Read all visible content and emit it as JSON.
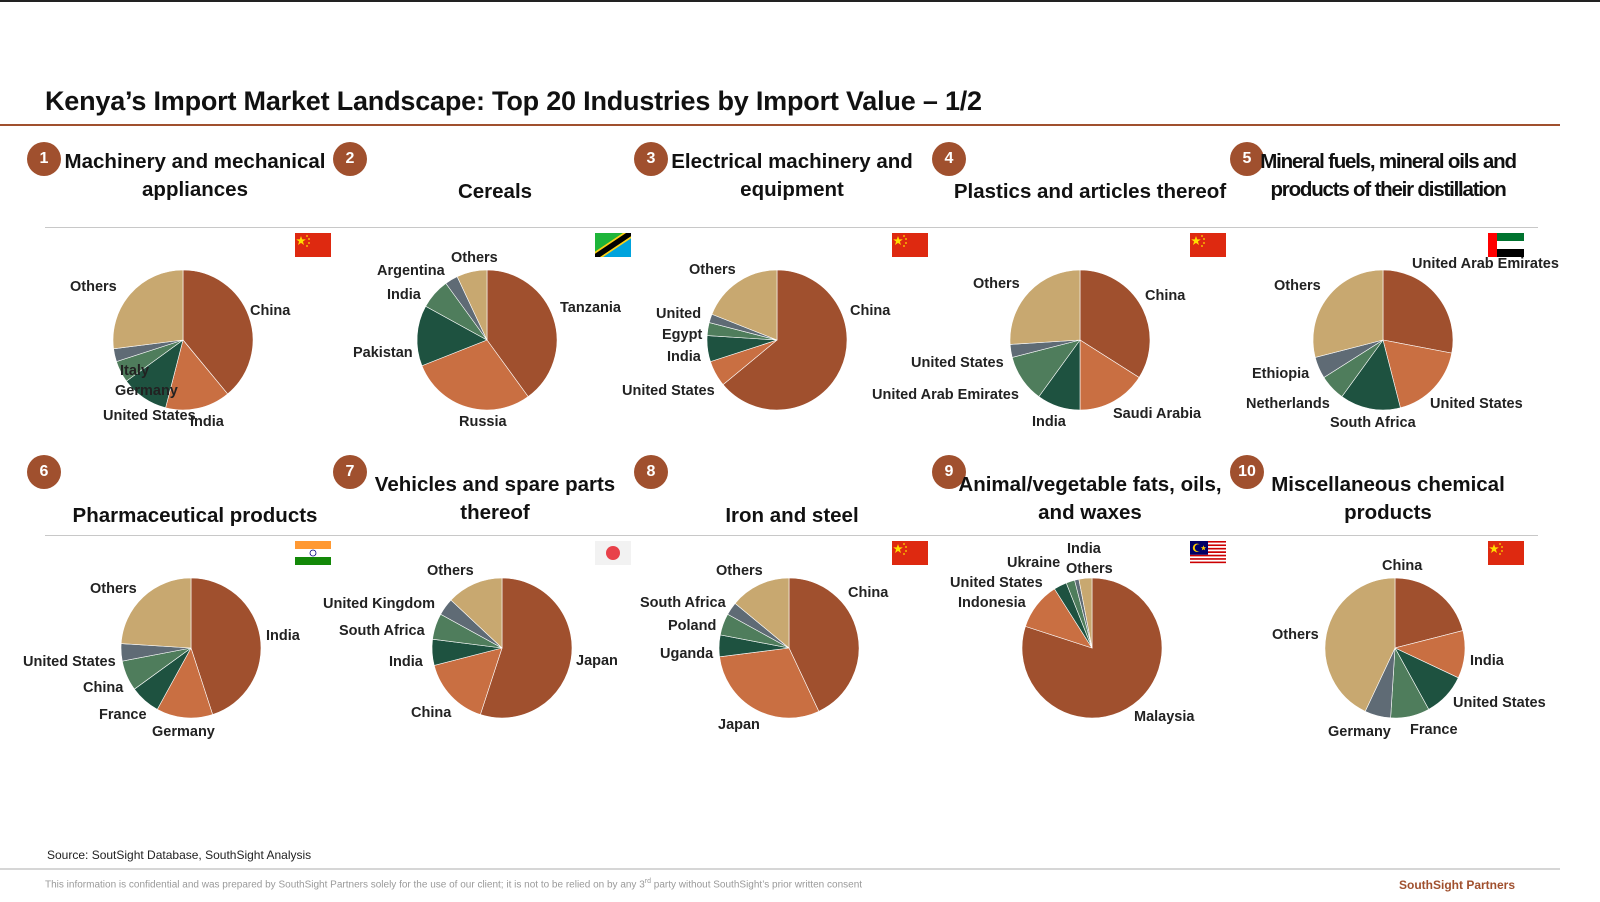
{
  "page": {
    "title": "Kenya’s Import Market Landscape: Top 20 Industries by Import Value – 1/2",
    "source": "Source: SoutSight Database, SouthSight Analysis",
    "disclaimer_before": "This information is confidential and was prepared by SouthSight Partners solely for the use of our client; it is not to be relied on by any 3",
    "disclaimer_sup": "rd",
    "disclaimer_after": " party without SouthSight’s prior written consent",
    "brand": "SouthSight Partners"
  },
  "colors": {
    "accent": "#A0502E",
    "slice_palette": [
      "#A0502E",
      "#C96F42",
      "#1E5240",
      "#4F7D5C",
      "#5F6B75",
      "#C8A870"
    ]
  },
  "chart_data": [
    {
      "type": "pie",
      "rank": "1",
      "title_lines": [
        "Machinery and mechanical",
        "appliances"
      ],
      "top_flag": "china-flag",
      "categories": [
        "China",
        "India",
        "United States",
        "Germany",
        "Italy",
        "Others"
      ],
      "values": [
        39,
        15,
        11,
        5,
        3,
        27
      ]
    },
    {
      "type": "pie",
      "rank": "2",
      "title_lines": [
        "Cereals"
      ],
      "top_flag": "tanzania-flag",
      "categories": [
        "Tanzania",
        "Russia",
        "Pakistan",
        "India",
        "Argentina",
        "Others"
      ],
      "values": [
        40,
        29,
        14,
        7,
        3,
        7
      ]
    },
    {
      "type": "pie",
      "rank": "3",
      "title_lines": [
        "Electrical machinery and",
        "equipment"
      ],
      "top_flag": "china-flag",
      "categories": [
        "China",
        "United States",
        "India",
        "Egypt",
        "United",
        "Others"
      ],
      "values": [
        64,
        6,
        6,
        3,
        2,
        19
      ]
    },
    {
      "type": "pie",
      "rank": "4",
      "title_lines": [
        "Plastics and articles thereof"
      ],
      "top_flag": "china-flag",
      "categories": [
        "China",
        "Saudi Arabia",
        "India",
        "United Arab Emirates",
        "United States",
        "Others"
      ],
      "values": [
        34,
        16,
        10,
        11,
        3,
        26
      ]
    },
    {
      "type": "pie",
      "rank": "5",
      "title_lines": [
        "Mineral fuels, mineral oils and",
        "products of their distillation"
      ],
      "top_flag": "uae-flag",
      "categories": [
        "United Arab Emirates",
        "United States",
        "South Africa",
        "Netherlands",
        "Ethiopia",
        "Others"
      ],
      "values": [
        28,
        18,
        14,
        6,
        5,
        29
      ]
    },
    {
      "type": "pie",
      "rank": "6",
      "title_lines": [
        "Pharmaceutical products"
      ],
      "top_flag": "india-flag",
      "categories": [
        "India",
        "Germany",
        "France",
        "China",
        "United States",
        "Others"
      ],
      "values": [
        45,
        13,
        7,
        7,
        4,
        24
      ]
    },
    {
      "type": "pie",
      "rank": "7",
      "title_lines": [
        "Vehicles and spare parts",
        "thereof"
      ],
      "top_flag": "japan-flag",
      "categories": [
        "Japan",
        "China",
        "India",
        "South Africa",
        "United Kingdom",
        "Others"
      ],
      "values": [
        55,
        16,
        6,
        6,
        4,
        13
      ]
    },
    {
      "type": "pie",
      "rank": "8",
      "title_lines": [
        "Iron and steel"
      ],
      "top_flag": "china-flag",
      "categories": [
        "China",
        "Japan",
        "Uganda",
        "Poland",
        "South Africa",
        "Others"
      ],
      "values": [
        43,
        30,
        5,
        5,
        3,
        14
      ]
    },
    {
      "type": "pie",
      "rank": "9",
      "title_lines": [
        "Animal/vegetable fats, oils,",
        "and waxes"
      ],
      "top_flag": "malaysia-flag",
      "categories": [
        "Malaysia",
        "Indonesia",
        "United States",
        "Ukraine",
        "India",
        "Others"
      ],
      "values": [
        80,
        11,
        3,
        2,
        1,
        3
      ]
    },
    {
      "type": "pie",
      "rank": "10",
      "title_lines": [
        "Miscellaneous chemical",
        "products"
      ],
      "top_flag": "china-flag",
      "categories": [
        "China",
        "India",
        "United States",
        "France",
        "Germany",
        "Others"
      ],
      "values": [
        21,
        11,
        10,
        9,
        6,
        43
      ]
    }
  ]
}
